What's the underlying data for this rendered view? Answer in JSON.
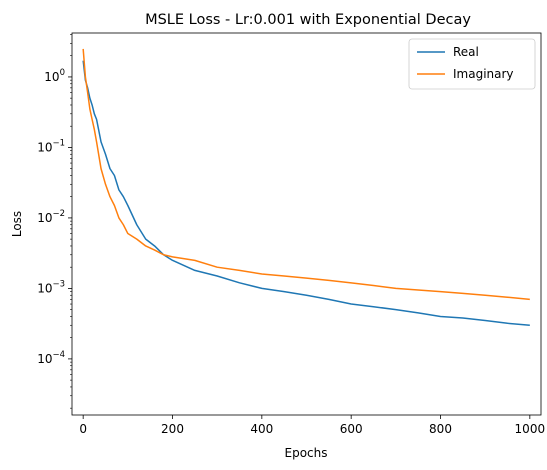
{
  "chart_data": {
    "type": "line",
    "title": "MSLE Loss - Lr:0.001 with Exponential Decay",
    "xlabel": "Epochs",
    "ylabel": "Loss",
    "xlim": [
      -25,
      1025
    ],
    "ylim": [
      1.6e-05,
      4.2
    ],
    "yscale": "log",
    "x_ticks": [
      0,
      200,
      400,
      600,
      800,
      1000
    ],
    "y_ticks": [
      {
        "value": 0.0001,
        "mantissa": "10",
        "exp": "−4"
      },
      {
        "value": 0.001,
        "mantissa": "10",
        "exp": "−3"
      },
      {
        "value": 0.01,
        "mantissa": "10",
        "exp": "−2"
      },
      {
        "value": 0.1,
        "mantissa": "10",
        "exp": "−1"
      },
      {
        "value": 1,
        "mantissa": "10",
        "exp": "0"
      }
    ],
    "grid": false,
    "legend_position": "top-right",
    "series": [
      {
        "name": "Real",
        "color": "#1f77b4",
        "x": [
          0,
          5,
          10,
          15,
          20,
          25,
          30,
          40,
          50,
          60,
          70,
          80,
          90,
          100,
          120,
          140,
          160,
          180,
          200,
          250,
          300,
          350,
          400,
          450,
          500,
          550,
          600,
          650,
          700,
          750,
          800,
          850,
          900,
          950,
          1000
        ],
        "y": [
          1.7,
          0.9,
          0.7,
          0.5,
          0.4,
          0.3,
          0.25,
          0.12,
          0.08,
          0.05,
          0.04,
          0.025,
          0.02,
          0.015,
          0.008,
          0.005,
          0.004,
          0.003,
          0.0025,
          0.0018,
          0.0015,
          0.0012,
          0.001,
          0.0009,
          0.0008,
          0.0007,
          0.0006,
          0.00055,
          0.0005,
          0.00045,
          0.0004,
          0.00038,
          0.00035,
          0.00032,
          0.0003
        ]
      },
      {
        "name": "Imaginary",
        "color": "#ff7f0e",
        "x": [
          0,
          5,
          10,
          15,
          20,
          25,
          30,
          40,
          50,
          60,
          70,
          80,
          90,
          100,
          120,
          140,
          160,
          180,
          200,
          250,
          300,
          350,
          400,
          450,
          500,
          550,
          600,
          650,
          700,
          750,
          800,
          850,
          900,
          950,
          1000
        ],
        "y": [
          2.5,
          1.0,
          0.6,
          0.35,
          0.25,
          0.18,
          0.12,
          0.05,
          0.03,
          0.02,
          0.015,
          0.01,
          0.008,
          0.006,
          0.005,
          0.004,
          0.0035,
          0.003,
          0.0028,
          0.0025,
          0.002,
          0.0018,
          0.0016,
          0.0015,
          0.0014,
          0.0013,
          0.0012,
          0.0011,
          0.001,
          0.00095,
          0.0009,
          0.00085,
          0.0008,
          0.00075,
          0.0007
        ]
      }
    ]
  }
}
